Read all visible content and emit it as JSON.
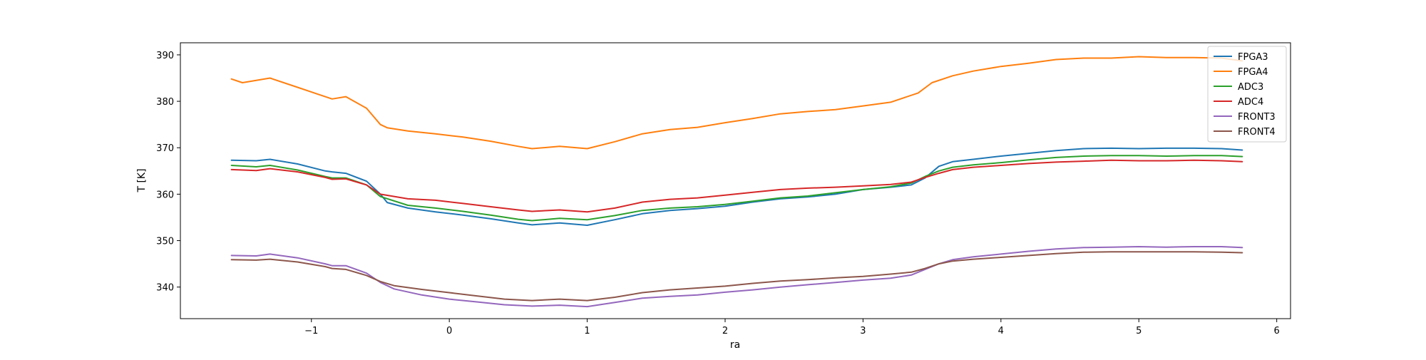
{
  "chart_data": {
    "type": "line",
    "title": "",
    "xlabel": "ra",
    "ylabel": "T [K]",
    "xlim": [
      -1.95,
      6.1
    ],
    "ylim": [
      333.2,
      392.6
    ],
    "xticks": [
      -1,
      0,
      1,
      2,
      3,
      4,
      5,
      6
    ],
    "yticks": [
      340,
      350,
      360,
      370,
      380,
      390
    ],
    "grid": false,
    "legend_position": "top-right",
    "series": [
      {
        "name": "FPGA3",
        "color": "#1f77b4",
        "x": [
          -1.58,
          -1.4,
          -1.3,
          -1.1,
          -0.9,
          -0.85,
          -0.75,
          -0.6,
          -0.5,
          -0.45,
          -0.3,
          -0.1,
          0.1,
          0.3,
          0.5,
          0.6,
          0.8,
          1.0,
          1.2,
          1.4,
          1.6,
          1.8,
          2.0,
          2.2,
          2.4,
          2.6,
          2.8,
          3.0,
          3.2,
          3.35,
          3.45,
          3.55,
          3.65,
          3.8,
          4.0,
          4.2,
          4.4,
          4.6,
          4.8,
          5.0,
          5.2,
          5.4,
          5.6,
          5.75
        ],
        "y": [
          367.3,
          367.2,
          367.5,
          366.5,
          365.0,
          364.8,
          364.5,
          362.8,
          360.0,
          358.2,
          357.0,
          356.2,
          355.5,
          354.7,
          353.8,
          353.4,
          353.8,
          353.3,
          354.5,
          355.8,
          356.5,
          356.9,
          357.4,
          358.3,
          359.0,
          359.4,
          360.0,
          361.0,
          361.5,
          362.0,
          363.5,
          366.0,
          367.0,
          367.5,
          368.2,
          368.8,
          369.4,
          369.8,
          369.9,
          369.8,
          369.9,
          369.9,
          369.8,
          369.5
        ]
      },
      {
        "name": "FPGA4",
        "color": "#ff7f0e",
        "x": [
          -1.58,
          -1.5,
          -1.3,
          -1.1,
          -0.95,
          -0.85,
          -0.75,
          -0.6,
          -0.5,
          -0.45,
          -0.3,
          -0.1,
          0.1,
          0.3,
          0.5,
          0.6,
          0.8,
          1.0,
          1.2,
          1.4,
          1.6,
          1.8,
          2.0,
          2.2,
          2.4,
          2.6,
          2.8,
          3.0,
          3.2,
          3.4,
          3.5,
          3.65,
          3.8,
          4.0,
          4.2,
          4.4,
          4.6,
          4.8,
          5.0,
          5.2,
          5.4,
          5.6,
          5.75
        ],
        "y": [
          384.8,
          384.0,
          385.0,
          383.0,
          381.5,
          380.5,
          381.0,
          378.5,
          375.0,
          374.3,
          373.6,
          373.0,
          372.3,
          371.4,
          370.3,
          369.8,
          370.3,
          369.8,
          371.3,
          373.0,
          373.9,
          374.4,
          375.4,
          376.3,
          377.3,
          377.8,
          378.2,
          379.0,
          379.8,
          381.8,
          384.0,
          385.5,
          386.5,
          387.5,
          388.2,
          389.0,
          389.3,
          389.3,
          389.6,
          389.4,
          389.4,
          389.3,
          388.7
        ]
      },
      {
        "name": "ADC3",
        "color": "#2ca02c",
        "x": [
          -1.58,
          -1.4,
          -1.3,
          -1.1,
          -0.9,
          -0.85,
          -0.75,
          -0.6,
          -0.5,
          -0.3,
          -0.1,
          0.1,
          0.3,
          0.5,
          0.6,
          0.8,
          1.0,
          1.2,
          1.4,
          1.6,
          1.8,
          2.0,
          2.2,
          2.4,
          2.6,
          2.8,
          3.0,
          3.2,
          3.35,
          3.45,
          3.55,
          3.65,
          3.8,
          4.0,
          4.2,
          4.4,
          4.6,
          4.8,
          5.0,
          5.2,
          5.4,
          5.6,
          5.75
        ],
        "y": [
          366.2,
          365.9,
          366.2,
          365.2,
          363.8,
          363.5,
          363.5,
          362.0,
          359.5,
          357.6,
          357.0,
          356.3,
          355.5,
          354.6,
          354.3,
          354.8,
          354.5,
          355.4,
          356.5,
          357.0,
          357.3,
          357.8,
          358.5,
          359.2,
          359.6,
          360.3,
          361.0,
          361.6,
          362.4,
          363.8,
          365.0,
          365.8,
          366.3,
          366.8,
          367.4,
          367.9,
          368.2,
          368.3,
          368.3,
          368.2,
          368.3,
          368.3,
          368.1
        ]
      },
      {
        "name": "ADC4",
        "color": "#d62728",
        "x": [
          -1.58,
          -1.4,
          -1.3,
          -1.1,
          -0.9,
          -0.85,
          -0.75,
          -0.6,
          -0.5,
          -0.3,
          -0.1,
          0.1,
          0.3,
          0.5,
          0.6,
          0.8,
          1.0,
          1.2,
          1.4,
          1.6,
          1.8,
          2.0,
          2.2,
          2.4,
          2.6,
          2.8,
          3.0,
          3.2,
          3.35,
          3.45,
          3.55,
          3.65,
          3.8,
          4.0,
          4.2,
          4.4,
          4.6,
          4.8,
          5.0,
          5.2,
          5.4,
          5.6,
          5.75
        ],
        "y": [
          365.3,
          365.1,
          365.5,
          364.8,
          363.6,
          363.2,
          363.3,
          362.0,
          360.0,
          359.0,
          358.7,
          358.0,
          357.3,
          356.6,
          356.3,
          356.6,
          356.2,
          357.0,
          358.3,
          358.9,
          359.2,
          359.8,
          360.4,
          361.0,
          361.3,
          361.5,
          361.8,
          362.1,
          362.6,
          363.6,
          364.5,
          365.3,
          365.8,
          366.2,
          366.6,
          366.9,
          367.1,
          367.3,
          367.2,
          367.2,
          367.3,
          367.2,
          367.0
        ]
      },
      {
        "name": "FRONT3",
        "color": "#9467bd",
        "x": [
          -1.58,
          -1.4,
          -1.3,
          -1.1,
          -0.9,
          -0.85,
          -0.75,
          -0.6,
          -0.5,
          -0.4,
          -0.2,
          0.0,
          0.2,
          0.4,
          0.6,
          0.8,
          1.0,
          1.2,
          1.4,
          1.6,
          1.8,
          2.0,
          2.2,
          2.4,
          2.6,
          2.8,
          3.0,
          3.2,
          3.35,
          3.45,
          3.55,
          3.65,
          3.8,
          4.0,
          4.2,
          4.4,
          4.6,
          4.8,
          5.0,
          5.2,
          5.4,
          5.6,
          5.75
        ],
        "y": [
          346.8,
          346.7,
          347.1,
          346.3,
          345.0,
          344.6,
          344.6,
          343.0,
          341.0,
          339.6,
          338.3,
          337.4,
          336.8,
          336.2,
          335.9,
          336.1,
          335.8,
          336.7,
          337.6,
          338.0,
          338.3,
          338.9,
          339.4,
          340.0,
          340.5,
          341.0,
          341.5,
          341.9,
          342.6,
          343.8,
          345.0,
          345.9,
          346.5,
          347.1,
          347.7,
          348.2,
          348.5,
          348.6,
          348.7,
          348.6,
          348.7,
          348.7,
          348.5
        ]
      },
      {
        "name": "FRONT4",
        "color": "#8c564b",
        "x": [
          -1.58,
          -1.4,
          -1.3,
          -1.1,
          -0.9,
          -0.85,
          -0.75,
          -0.6,
          -0.5,
          -0.4,
          -0.2,
          0.0,
          0.2,
          0.4,
          0.6,
          0.8,
          1.0,
          1.2,
          1.4,
          1.6,
          1.8,
          2.0,
          2.2,
          2.4,
          2.6,
          2.8,
          3.0,
          3.2,
          3.35,
          3.45,
          3.55,
          3.65,
          3.8,
          4.0,
          4.2,
          4.4,
          4.6,
          4.8,
          5.0,
          5.2,
          5.4,
          5.6,
          5.75
        ],
        "y": [
          345.9,
          345.8,
          346.0,
          345.4,
          344.4,
          344.0,
          343.8,
          342.5,
          341.2,
          340.3,
          339.5,
          338.8,
          338.1,
          337.4,
          337.1,
          337.4,
          337.1,
          337.8,
          338.8,
          339.4,
          339.8,
          340.2,
          340.8,
          341.3,
          341.6,
          342.0,
          342.3,
          342.8,
          343.2,
          344.0,
          345.0,
          345.6,
          346.0,
          346.4,
          346.8,
          347.2,
          347.5,
          347.6,
          347.6,
          347.6,
          347.6,
          347.5,
          347.4
        ]
      }
    ]
  }
}
